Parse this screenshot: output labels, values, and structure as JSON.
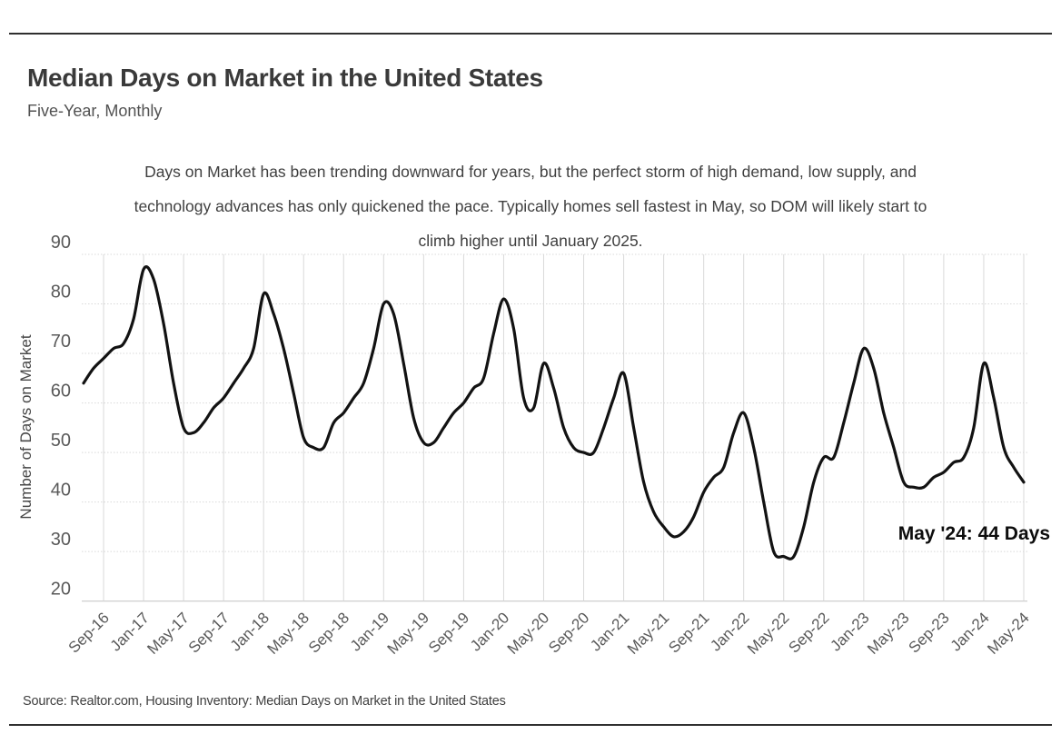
{
  "header": {
    "title": "Median Days on Market in the United States",
    "subtitle": "Five-Year, Monthly"
  },
  "description": {
    "lines": [
      "Days on Market has been trending downward for years, but the perfect storm of high demand, low supply, and",
      "technology advances has only quickened the pace. Typically homes sell fastest in May, so DOM will likely start to",
      "climb higher until January 2025."
    ]
  },
  "chart_data": {
    "type": "line",
    "title": "Median Days on Market in the United States",
    "series_name": "Median Days on Market",
    "ylabel": "Number of Days on Market",
    "xlabel": "",
    "ylim": [
      20,
      90
    ],
    "y_ticks": [
      90,
      80,
      70,
      60,
      50,
      40,
      30,
      20
    ],
    "grid": true,
    "line_color": "#121212",
    "grid_color": "#d9d9d9",
    "annotation": "May '24: 44 Days",
    "x": [
      "Jul-16",
      "Aug-16",
      "Sep-16",
      "Oct-16",
      "Nov-16",
      "Dec-16",
      "Jan-17",
      "Feb-17",
      "Mar-17",
      "Apr-17",
      "May-17",
      "Jun-17",
      "Jul-17",
      "Aug-17",
      "Sep-17",
      "Oct-17",
      "Nov-17",
      "Dec-17",
      "Jan-18",
      "Feb-18",
      "Mar-18",
      "Apr-18",
      "May-18",
      "Jun-18",
      "Jul-18",
      "Aug-18",
      "Sep-18",
      "Oct-18",
      "Nov-18",
      "Dec-18",
      "Jan-19",
      "Feb-19",
      "Mar-19",
      "Apr-19",
      "May-19",
      "Jun-19",
      "Jul-19",
      "Aug-19",
      "Sep-19",
      "Oct-19",
      "Nov-19",
      "Dec-19",
      "Jan-20",
      "Feb-20",
      "Mar-20",
      "Apr-20",
      "May-20",
      "Jun-20",
      "Jul-20",
      "Aug-20",
      "Sep-20",
      "Oct-20",
      "Nov-20",
      "Dec-20",
      "Jan-21",
      "Feb-21",
      "Mar-21",
      "Apr-21",
      "May-21",
      "Jun-21",
      "Jul-21",
      "Aug-21",
      "Sep-21",
      "Oct-21",
      "Nov-21",
      "Dec-21",
      "Jan-22",
      "Feb-22",
      "Mar-22",
      "Apr-22",
      "May-22",
      "Jun-22",
      "Jul-22",
      "Aug-22",
      "Sep-22",
      "Oct-22",
      "Nov-22",
      "Dec-22",
      "Jan-23",
      "Feb-23",
      "Mar-23",
      "Apr-23",
      "May-23",
      "Jun-23",
      "Jul-23",
      "Aug-23",
      "Sep-23",
      "Oct-23",
      "Nov-23",
      "Dec-23",
      "Jan-24",
      "Feb-24",
      "Mar-24",
      "Apr-24",
      "May-24"
    ],
    "values": [
      64,
      67,
      69,
      71,
      72,
      77,
      87,
      85,
      76,
      64,
      55,
      54,
      56,
      59,
      61,
      64,
      67,
      71,
      82,
      78,
      71,
      62,
      53,
      51,
      51,
      56,
      58,
      61,
      64,
      71,
      80,
      78,
      68,
      57,
      52,
      52,
      55,
      58,
      60,
      63,
      65,
      74,
      81,
      75,
      61,
      59,
      68,
      63,
      55,
      51,
      50,
      50,
      55,
      61,
      66,
      55,
      44,
      38,
      35,
      33,
      34,
      37,
      42,
      45,
      47,
      54,
      58,
      51,
      40,
      30,
      29,
      29,
      35,
      44,
      49,
      49,
      56,
      64,
      71,
      67,
      58,
      51,
      44,
      43,
      43,
      45,
      46,
      48,
      49,
      55,
      68,
      61,
      51,
      47,
      44
    ],
    "x_tick_labels": [
      "Sep-16",
      "Jan-17",
      "May-17",
      "Sep-17",
      "Jan-18",
      "May-18",
      "Sep-18",
      "Jan-19",
      "May-19",
      "Sep-19",
      "Jan-20",
      "May-20",
      "Sep-20",
      "Jan-21",
      "May-21",
      "Sep-21",
      "Jan-22",
      "May-22",
      "Sep-22",
      "Jan-23",
      "May-23",
      "Sep-23",
      "Jan-24",
      "May-24"
    ]
  },
  "footer": {
    "source": "Source:  Realtor.com, Housing Inventory: Median Days on Market in the United States"
  }
}
